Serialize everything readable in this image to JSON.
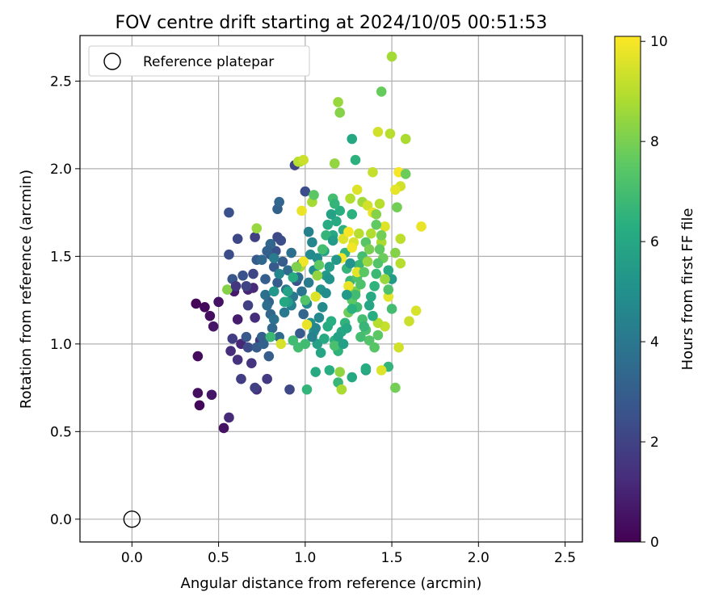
{
  "chart_data": {
    "type": "scatter",
    "title": "FOV centre drift starting at 2024/10/05 00:51:53",
    "xlabel": "Angular distance from reference (arcmin)",
    "ylabel": "Rotation from reference (arcmin)",
    "xlim": [
      -0.3,
      2.6
    ],
    "ylim": [
      -0.13,
      2.76
    ],
    "xticks": [
      0.0,
      0.5,
      1.0,
      1.5,
      2.0,
      2.5
    ],
    "xtick_labels": [
      "0.0",
      "0.5",
      "1.0",
      "1.5",
      "2.0",
      "2.5"
    ],
    "yticks": [
      0.0,
      0.5,
      1.0,
      1.5,
      2.0,
      2.5
    ],
    "ytick_labels": [
      "0.0",
      "0.5",
      "1.0",
      "1.5",
      "2.0",
      "2.5"
    ],
    "grid": true,
    "legend": {
      "placement": "top-left",
      "entries": [
        "Reference platepar"
      ]
    },
    "reference_point": {
      "x": 0.0,
      "y": 0.0
    },
    "colorbar": {
      "label": "Hours from first FF file",
      "range": [
        0,
        10.1
      ],
      "ticks": [
        0,
        2,
        4,
        6,
        8,
        10
      ],
      "tick_labels": [
        "0",
        "2",
        "4",
        "6",
        "8",
        "10"
      ],
      "colormap": "viridis"
    },
    "points": [
      [
        0.37,
        1.23,
        0.1
      ],
      [
        0.42,
        1.21,
        0.2
      ],
      [
        0.38,
        0.93,
        0.3
      ],
      [
        0.45,
        1.16,
        0.4
      ],
      [
        0.5,
        1.24,
        0.5
      ],
      [
        0.47,
        1.1,
        0.6
      ],
      [
        0.38,
        0.72,
        0.4
      ],
      [
        0.39,
        0.65,
        0.2
      ],
      [
        0.46,
        0.71,
        0.6
      ],
      [
        0.53,
        0.52,
        0.5
      ],
      [
        0.56,
        0.58,
        1.2
      ],
      [
        0.59,
        1.3,
        0.7
      ],
      [
        0.61,
        1.14,
        0.8
      ],
      [
        0.67,
        1.31,
        1.0
      ],
      [
        0.63,
        1.0,
        1.1
      ],
      [
        0.57,
        0.96,
        1.3
      ],
      [
        0.61,
        0.91,
        1.4
      ],
      [
        0.7,
        1.32,
        1.2
      ],
      [
        0.71,
        1.15,
        1.3
      ],
      [
        0.72,
        0.74,
        1.4
      ],
      [
        0.69,
        0.89,
        1.5
      ],
      [
        0.74,
        1.02,
        1.6
      ],
      [
        0.63,
        0.8,
        1.8
      ],
      [
        0.71,
        0.75,
        1.9
      ],
      [
        0.78,
        0.8,
        1.7
      ],
      [
        0.58,
        1.03,
        1.8
      ],
      [
        0.67,
        1.22,
        1.9
      ],
      [
        0.66,
        1.33,
        2.0
      ],
      [
        0.7,
        1.4,
        2.1
      ],
      [
        0.71,
        1.61,
        1.9
      ],
      [
        0.61,
        1.6,
        2.2
      ],
      [
        0.56,
        1.51,
        2.4
      ],
      [
        0.56,
        1.75,
        2.5
      ],
      [
        0.64,
        1.39,
        2.6
      ],
      [
        0.58,
        1.37,
        2.7
      ],
      [
        0.67,
        0.98,
        2.3
      ],
      [
        0.66,
        1.04,
        2.8
      ],
      [
        0.72,
        0.98,
        2.9
      ],
      [
        0.79,
        0.93,
        3.0
      ],
      [
        0.76,
        1.0,
        3.2
      ],
      [
        0.75,
        1.04,
        3.1
      ],
      [
        0.72,
        1.48,
        2.9
      ],
      [
        0.77,
        1.37,
        3.0
      ],
      [
        0.79,
        1.24,
        3.2
      ],
      [
        0.8,
        1.17,
        3.3
      ],
      [
        0.81,
        1.09,
        3.4
      ],
      [
        0.85,
        1.04,
        3.5
      ],
      [
        0.78,
        1.22,
        3.6
      ],
      [
        0.77,
        1.28,
        3.7
      ],
      [
        0.82,
        1.14,
        3.8
      ],
      [
        0.8,
        1.51,
        2.6
      ],
      [
        0.8,
        1.57,
        2.7
      ],
      [
        0.82,
        1.44,
        2.8
      ],
      [
        0.83,
        1.53,
        2.5
      ],
      [
        0.86,
        1.59,
        2.4
      ],
      [
        0.84,
        1.61,
        2.3
      ],
      [
        0.87,
        1.47,
        2.9
      ],
      [
        0.84,
        1.35,
        3.0
      ],
      [
        0.84,
        1.77,
        3.1
      ],
      [
        0.85,
        1.81,
        3.3
      ],
      [
        0.91,
        0.74,
        2.2
      ],
      [
        0.94,
        2.02,
        2.0
      ],
      [
        0.95,
        1.36,
        2.6
      ],
      [
        0.9,
        1.42,
        3.5
      ],
      [
        0.92,
        1.52,
        3.7
      ],
      [
        0.89,
        1.31,
        3.9
      ],
      [
        0.93,
        1.27,
        4.0
      ],
      [
        0.88,
        1.18,
        4.1
      ],
      [
        0.92,
        1.22,
        4.3
      ],
      [
        0.9,
        1.24,
        5.6
      ],
      [
        0.97,
        1.06,
        2.9
      ],
      [
        0.99,
        1.17,
        3.3
      ],
      [
        1.0,
        1.87,
        2.4
      ],
      [
        0.98,
        1.46,
        3.0
      ],
      [
        0.96,
        1.38,
        3.6
      ],
      [
        0.98,
        1.3,
        3.9
      ],
      [
        1.02,
        1.35,
        4.2
      ],
      [
        1.02,
        1.64,
        4.4
      ],
      [
        1.04,
        1.58,
        4.6
      ],
      [
        1.03,
        1.51,
        4.8
      ],
      [
        1.07,
        1.49,
        4.9
      ],
      [
        1.05,
        1.42,
        5.0
      ],
      [
        1.09,
        1.31,
        5.2
      ],
      [
        1.12,
        1.39,
        5.4
      ],
      [
        1.14,
        1.44,
        5.6
      ],
      [
        1.11,
        1.53,
        5.8
      ],
      [
        1.16,
        1.62,
        6.0
      ],
      [
        1.18,
        1.7,
        6.1
      ],
      [
        1.2,
        1.76,
        6.3
      ],
      [
        1.22,
        1.65,
        6.4
      ],
      [
        1.23,
        1.52,
        6.5
      ],
      [
        1.24,
        1.43,
        6.6
      ],
      [
        1.26,
        1.36,
        6.7
      ],
      [
        1.28,
        1.29,
        6.8
      ],
      [
        1.3,
        1.21,
        6.9
      ],
      [
        1.33,
        1.14,
        7.0
      ],
      [
        1.35,
        1.08,
        7.1
      ],
      [
        1.37,
        1.02,
        7.3
      ],
      [
        1.4,
        0.98,
        7.4
      ],
      [
        1.42,
        1.05,
        7.5
      ],
      [
        1.01,
        1.23,
        4.7
      ],
      [
        1.03,
        1.12,
        5.0
      ],
      [
        1.05,
        1.07,
        5.3
      ],
      [
        1.07,
        1.0,
        5.7
      ],
      [
        1.09,
        0.95,
        5.9
      ],
      [
        1.11,
        1.03,
        6.1
      ],
      [
        1.13,
        1.1,
        6.2
      ],
      [
        1.15,
        1.13,
        6.3
      ],
      [
        1.17,
        1.02,
        6.4
      ],
      [
        1.19,
        0.96,
        6.5
      ],
      [
        1.01,
        0.74,
        6.6
      ],
      [
        1.06,
        0.84,
        6.1
      ],
      [
        1.14,
        0.85,
        6.3
      ],
      [
        1.19,
        0.78,
        6.7
      ],
      [
        1.21,
        0.74,
        8.8
      ],
      [
        1.27,
        0.81,
        6.0
      ],
      [
        1.35,
        0.85,
        5.8
      ],
      [
        1.35,
        0.86,
        6.2
      ],
      [
        1.48,
        0.87,
        6.6
      ],
      [
        1.52,
        0.75,
        7.9
      ],
      [
        1.44,
        0.85,
        9.6
      ],
      [
        1.54,
        0.98,
        9.4
      ],
      [
        1.46,
        1.1,
        9.2
      ],
      [
        1.42,
        1.12,
        9.0
      ],
      [
        1.5,
        1.2,
        7.0
      ],
      [
        1.48,
        1.27,
        9.7
      ],
      [
        1.5,
        1.37,
        5.5
      ],
      [
        1.48,
        1.42,
        6.2
      ],
      [
        1.55,
        1.46,
        9.0
      ],
      [
        1.52,
        1.52,
        8.2
      ],
      [
        1.55,
        1.6,
        9.1
      ],
      [
        1.6,
        1.13,
        9.3
      ],
      [
        1.64,
        1.19,
        9.5
      ],
      [
        1.67,
        1.67,
        9.8
      ],
      [
        1.53,
        1.78,
        7.9
      ],
      [
        1.55,
        1.9,
        9.4
      ],
      [
        1.52,
        1.88,
        9.7
      ],
      [
        1.54,
        1.98,
        10.0
      ],
      [
        1.58,
        1.97,
        7.8
      ],
      [
        1.58,
        2.17,
        8.8
      ],
      [
        1.49,
        2.2,
        9.0
      ],
      [
        1.42,
        2.21,
        9.4
      ],
      [
        1.44,
        2.44,
        7.7
      ],
      [
        1.5,
        2.64,
        8.7
      ],
      [
        1.19,
        2.38,
        8.5
      ],
      [
        1.2,
        2.32,
        8.2
      ],
      [
        1.27,
        2.17,
        6.0
      ],
      [
        1.29,
        2.05,
        6.4
      ],
      [
        1.39,
        1.98,
        9.2
      ],
      [
        1.46,
        1.67,
        9.6
      ],
      [
        0.97,
        2.04,
        8.7
      ],
      [
        0.96,
        2.04,
        9.0
      ],
      [
        0.99,
        2.05,
        9.3
      ],
      [
        1.17,
        2.03,
        8.4
      ],
      [
        1.16,
        1.83,
        7.0
      ],
      [
        1.17,
        1.8,
        6.6
      ],
      [
        1.26,
        1.83,
        8.9
      ],
      [
        1.27,
        1.74,
        6.4
      ],
      [
        1.3,
        1.88,
        9.6
      ],
      [
        1.33,
        1.81,
        8.6
      ],
      [
        1.36,
        1.79,
        9.4
      ],
      [
        1.39,
        1.75,
        9.8
      ],
      [
        1.41,
        1.74,
        8.2
      ],
      [
        1.43,
        1.8,
        9.0
      ],
      [
        1.44,
        1.58,
        8.8
      ],
      [
        1.45,
        1.49,
        7.8
      ],
      [
        1.46,
        1.37,
        8.5
      ],
      [
        1.48,
        1.31,
        7.2
      ],
      [
        1.41,
        1.68,
        7.6
      ],
      [
        1.38,
        1.63,
        8.9
      ],
      [
        1.35,
        1.58,
        7.4
      ],
      [
        1.33,
        1.5,
        7.0
      ],
      [
        1.31,
        1.45,
        6.8
      ],
      [
        1.3,
        1.38,
        7.2
      ],
      [
        1.29,
        1.3,
        8.0
      ],
      [
        1.27,
        1.25,
        7.5
      ],
      [
        1.25,
        1.18,
        7.8
      ],
      [
        1.23,
        1.12,
        6.5
      ],
      [
        1.21,
        1.07,
        6.0
      ],
      [
        1.19,
        1.04,
        5.8
      ],
      [
        1.17,
        0.99,
        7.1
      ],
      [
        1.2,
        0.84,
        8.4
      ],
      [
        1.25,
        1.33,
        9.8
      ],
      [
        1.22,
        1.6,
        9.6
      ],
      [
        1.21,
        1.49,
        9.9
      ],
      [
        1.25,
        1.64,
        10.0
      ],
      [
        1.28,
        1.58,
        9.5
      ],
      [
        1.31,
        1.63,
        9.0
      ],
      [
        1.3,
        1.41,
        9.7
      ],
      [
        1.27,
        1.55,
        9.9
      ],
      [
        0.98,
        1.76,
        9.8
      ],
      [
        0.97,
        1.44,
        8.8
      ],
      [
        0.99,
        1.47,
        9.9
      ],
      [
        1.04,
        1.81,
        8.7
      ],
      [
        1.05,
        1.85,
        7.5
      ],
      [
        1.06,
        1.27,
        9.6
      ],
      [
        1.07,
        1.39,
        8.4
      ],
      [
        1.08,
        1.45,
        7.6
      ],
      [
        1.1,
        1.54,
        7.0
      ],
      [
        1.12,
        1.62,
        6.6
      ],
      [
        1.13,
        1.68,
        6.2
      ],
      [
        1.15,
        1.74,
        5.8
      ],
      [
        1.16,
        1.59,
        5.5
      ],
      [
        1.18,
        1.48,
        5.3
      ],
      [
        1.14,
        1.37,
        5.1
      ],
      [
        1.12,
        1.29,
        4.9
      ],
      [
        1.1,
        1.21,
        4.8
      ],
      [
        1.08,
        1.15,
        4.7
      ],
      [
        1.06,
        1.09,
        4.6
      ],
      [
        1.04,
        1.04,
        4.5
      ],
      [
        0.93,
        1.02,
        6.9
      ],
      [
        0.96,
        0.98,
        7.0
      ],
      [
        1.0,
        1.0,
        6.9
      ],
      [
        1.01,
        1.11,
        9.8
      ],
      [
        1.0,
        1.25,
        7.3
      ],
      [
        0.95,
        1.44,
        8.1
      ],
      [
        0.93,
        1.38,
        6.2
      ],
      [
        0.9,
        1.3,
        5.8
      ],
      [
        0.88,
        1.24,
        6.0
      ],
      [
        0.86,
        1.0,
        9.5
      ],
      [
        0.8,
        1.04,
        6.8
      ],
      [
        0.82,
        1.3,
        5.3
      ],
      [
        0.85,
        1.4,
        4.6
      ],
      [
        0.82,
        1.49,
        4.2
      ],
      [
        0.8,
        1.57,
        3.3
      ],
      [
        0.78,
        1.53,
        3.1
      ],
      [
        0.75,
        1.48,
        3.4
      ],
      [
        0.72,
        1.66,
        8.5
      ],
      [
        0.55,
        1.31,
        8.2
      ],
      [
        0.6,
        1.33,
        1.6
      ],
      [
        1.38,
        1.27,
        6.1
      ],
      [
        1.4,
        1.33,
        6.5
      ],
      [
        1.41,
        1.4,
        6.8
      ],
      [
        1.42,
        1.46,
        7.3
      ],
      [
        1.43,
        1.54,
        7.6
      ],
      [
        1.44,
        1.62,
        7.9
      ],
      [
        1.37,
        1.22,
        5.9
      ],
      [
        1.39,
        1.16,
        6.3
      ],
      [
        1.34,
        1.1,
        6.7
      ],
      [
        1.32,
        1.04,
        7.0
      ],
      [
        1.36,
        1.47,
        8.5
      ],
      [
        1.37,
        1.54,
        8.0
      ],
      [
        1.34,
        1.41,
        7.5
      ],
      [
        1.32,
        1.34,
        7.2
      ],
      [
        1.29,
        1.28,
        6.9
      ],
      [
        1.27,
        1.2,
        6.4
      ],
      [
        1.24,
        1.09,
        6.0
      ],
      [
        1.22,
        1.0,
        5.7
      ],
      [
        1.24,
        1.28,
        5.4
      ],
      [
        1.26,
        1.46,
        5.2
      ]
    ]
  }
}
